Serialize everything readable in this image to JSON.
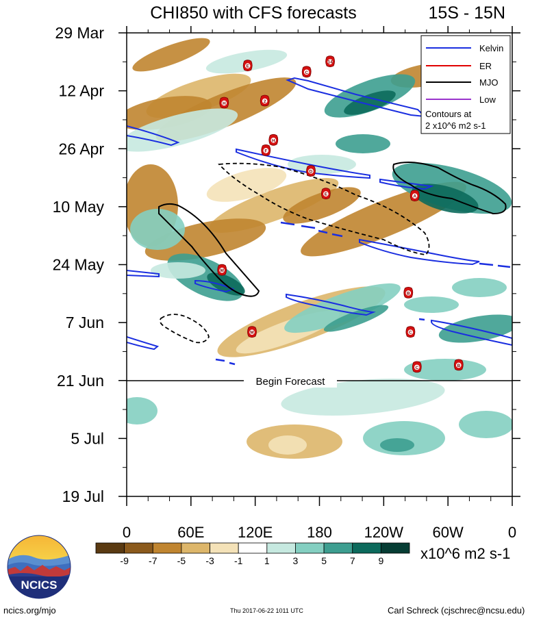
{
  "title_left": "CHI850 with CFS forecasts",
  "title_right": "15S - 15N",
  "chart_data": {
    "type": "heatmap",
    "title": "CHI850 with CFS forecasts",
    "region": "15S - 15N",
    "y_ticks": [
      "29 Mar",
      "12 Apr",
      "26 Apr",
      "10 May",
      "24 May",
      "7 Jun",
      "21 Jun",
      "5 Jul",
      "19 Jul"
    ],
    "x_ticks": [
      "0",
      "60E",
      "120E",
      "180",
      "120W",
      "60W",
      "0"
    ],
    "x_range_deg": [
      0,
      360
    ],
    "date_range": [
      "29 Mar",
      "19 Jul"
    ],
    "forecast_start": "21 Jun",
    "forecast_label": "Begin Forecast",
    "colorbar": {
      "labels": [
        "-9",
        "-7",
        "-5",
        "-3",
        "-1",
        "1",
        "3",
        "5",
        "7",
        "9"
      ],
      "colors": [
        "#5a3a12",
        "#8b5a1c",
        "#c08530",
        "#ddb66a",
        "#f4e2b8",
        "#ffffff",
        "#c6e9e0",
        "#84cfc1",
        "#3d9e90",
        "#0c6a5c",
        "#063d34"
      ],
      "units": "x10^6 m2 s-1"
    },
    "legend": {
      "items": [
        {
          "label": "Kelvin",
          "color": "#1a2ee0"
        },
        {
          "label": "ER",
          "color": "#e00000"
        },
        {
          "label": "MJO",
          "color": "#000000"
        },
        {
          "label": "Low",
          "color": "#9933cc"
        }
      ],
      "note_line1": "Contours at",
      "note_line2": "2 x10^6 m2 s-1"
    },
    "storms": [
      {
        "label": "E",
        "lon": 113,
        "day": 8.0
      },
      {
        "label": "C",
        "lon": 168,
        "day": 9.5
      },
      {
        "label": "14",
        "lon": 190,
        "day": 7.0
      },
      {
        "label": "H",
        "lon": 91,
        "day": 17.0
      },
      {
        "label": "2",
        "lon": 129,
        "day": 16.5
      },
      {
        "label": "H",
        "lon": 137,
        "day": 26.0
      },
      {
        "label": "F",
        "lon": 130,
        "day": 28.5
      },
      {
        "label": "D",
        "lon": 172,
        "day": 33.5
      },
      {
        "label": "E",
        "lon": 186,
        "day": 39.0
      },
      {
        "label": "A",
        "lon": 269,
        "day": 39.5
      },
      {
        "label": "M",
        "lon": 89,
        "day": 57.5
      },
      {
        "label": "B",
        "lon": 263,
        "day": 63.0
      },
      {
        "label": "M",
        "lon": 117,
        "day": 72.5
      },
      {
        "label": "C",
        "lon": 265,
        "day": 72.5
      },
      {
        "label": "C",
        "lon": 271,
        "day": 81.0
      },
      {
        "label": "B",
        "lon": 310,
        "day": 80.5
      }
    ]
  },
  "footer": {
    "logo_text": "NCICS",
    "site": "ncics.org/mjo",
    "timestamp": "Thu 2017-06-22 1011 UTC",
    "author": "Carl Schreck (cjschrec@ncsu.edu)"
  }
}
